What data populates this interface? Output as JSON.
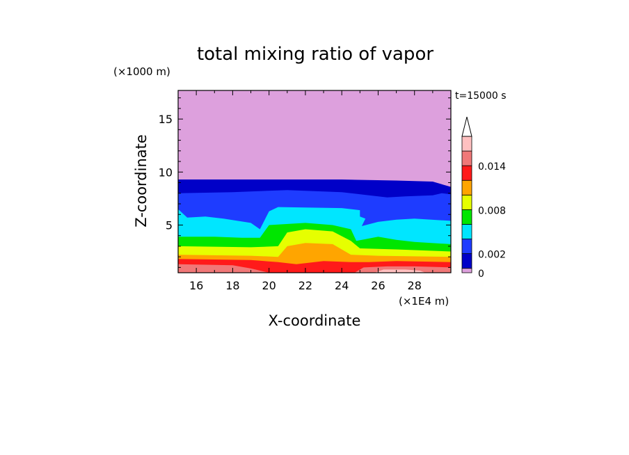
{
  "chart_data": {
    "type": "heatmap",
    "title": "total mixing ratio of vapor",
    "time_label": "t=15000 s",
    "xlabel": "X-coordinate",
    "ylabel": "Z-coordinate",
    "x_unit": "(×1E4 m)",
    "y_unit": "(×1000 m)",
    "xlim": [
      15,
      30
    ],
    "ylim": [
      0.5,
      17.7
    ],
    "x_ticks": [
      16,
      18,
      20,
      22,
      24,
      26,
      28
    ],
    "y_ticks": [
      5,
      10,
      15
    ],
    "colorbar": {
      "levels": [
        0,
        0.001,
        0.002,
        0.004,
        0.006,
        0.008,
        0.01,
        0.012,
        0.014,
        0.016
      ],
      "tick_labels": [
        "0",
        "0.002",
        "0.008",
        "0.014"
      ],
      "tick_values": [
        0,
        0.002,
        0.008,
        0.014
      ],
      "colors": [
        "#dda0dd",
        "#0000c8",
        "#1e3cff",
        "#00e6ff",
        "#00e600",
        "#e6ff00",
        "#ffa500",
        "#ff1a1a",
        "#f07878",
        "#ffc0c0"
      ],
      "extend": "max"
    },
    "contour_bands": [
      {
        "level": "0-0.001",
        "color": "#dda0dd",
        "points": [
          [
            15,
            17.7
          ],
          [
            30,
            17.7
          ],
          [
            30,
            0.5
          ],
          [
            15,
            0.5
          ]
        ]
      },
      {
        "level": "0.001-0.002",
        "color": "#0000c8",
        "points": [
          [
            15,
            9.3
          ],
          [
            19,
            9.3
          ],
          [
            24,
            9.3
          ],
          [
            27,
            9.2
          ],
          [
            29,
            9.1
          ],
          [
            29.6,
            8.8
          ],
          [
            30,
            8.6
          ],
          [
            30,
            0.5
          ],
          [
            15,
            0.5
          ]
        ]
      },
      {
        "level": "0.002-0.004",
        "color": "#1e3cff",
        "points": [
          [
            15,
            8.0
          ],
          [
            18,
            8.1
          ],
          [
            21,
            8.3
          ],
          [
            24,
            8.1
          ],
          [
            25.5,
            7.8
          ],
          [
            26.5,
            7.6
          ],
          [
            27.5,
            7.7
          ],
          [
            29,
            7.8
          ],
          [
            29.5,
            8.0
          ],
          [
            30,
            7.9
          ],
          [
            30,
            0.5
          ],
          [
            15,
            0.5
          ]
        ]
      },
      {
        "level": "0.004-0.006",
        "color": "#00e6ff",
        "points": [
          [
            15,
            6.5
          ],
          [
            15.5,
            5.7
          ],
          [
            16.5,
            5.8
          ],
          [
            17.5,
            5.6
          ],
          [
            19,
            5.2
          ],
          [
            19.5,
            4.6
          ],
          [
            20,
            6.3
          ],
          [
            20.5,
            6.7
          ],
          [
            24,
            6.6
          ],
          [
            25,
            6.4
          ],
          [
            25,
            5.8
          ],
          [
            25.3,
            5.6
          ],
          [
            25.1,
            4.9
          ],
          [
            26,
            5.3
          ],
          [
            27,
            5.5
          ],
          [
            28,
            5.6
          ],
          [
            30,
            5.4
          ],
          [
            30,
            0.5
          ],
          [
            15,
            0.5
          ]
        ]
      },
      {
        "level": "0.006-0.008",
        "color": "#00e600",
        "points": [
          [
            15,
            3.9
          ],
          [
            17,
            3.9
          ],
          [
            18.5,
            3.8
          ],
          [
            19.5,
            3.8
          ],
          [
            20,
            5.0
          ],
          [
            22,
            5.2
          ],
          [
            23.5,
            5.0
          ],
          [
            24.5,
            4.6
          ],
          [
            24.8,
            3.5
          ],
          [
            26,
            3.9
          ],
          [
            27,
            3.6
          ],
          [
            28,
            3.4
          ],
          [
            30,
            3.2
          ],
          [
            30,
            0.5
          ],
          [
            15,
            0.5
          ]
        ]
      },
      {
        "level": "0.008-0.010",
        "color": "#e6ff00",
        "points": [
          [
            15,
            3.0
          ],
          [
            19,
            2.9
          ],
          [
            20.5,
            3.0
          ],
          [
            21,
            4.3
          ],
          [
            22,
            4.6
          ],
          [
            23.5,
            4.4
          ],
          [
            24.5,
            3.5
          ],
          [
            25,
            2.8
          ],
          [
            27,
            2.7
          ],
          [
            30,
            2.5
          ],
          [
            30,
            0.5
          ],
          [
            15,
            0.5
          ]
        ]
      },
      {
        "level": "0.010-0.012",
        "color": "#ffa500",
        "points": [
          [
            15,
            2.2
          ],
          [
            19,
            2.1
          ],
          [
            20.5,
            2.0
          ],
          [
            21,
            3.0
          ],
          [
            22,
            3.3
          ],
          [
            23.5,
            3.2
          ],
          [
            24.5,
            2.2
          ],
          [
            26,
            2.1
          ],
          [
            30,
            2.0
          ],
          [
            30,
            0.5
          ],
          [
            15,
            0.5
          ]
        ]
      },
      {
        "level": "0.012-0.014",
        "color": "#ff1a1a",
        "points": [
          [
            15,
            1.8
          ],
          [
            19,
            1.7
          ],
          [
            20.5,
            1.5
          ],
          [
            21.5,
            1.3
          ],
          [
            23,
            1.6
          ],
          [
            24.5,
            1.5
          ],
          [
            25.5,
            1.5
          ],
          [
            27,
            1.6
          ],
          [
            30,
            1.5
          ],
          [
            30,
            0.5
          ],
          [
            15,
            0.5
          ]
        ]
      },
      {
        "level": "0.014-0.016",
        "color": "#f07878",
        "points": [
          [
            15,
            1.3
          ],
          [
            18,
            1.2
          ],
          [
            19,
            0.9
          ],
          [
            20,
            0.5
          ],
          [
            15,
            0.5
          ]
        ]
      },
      {
        "level": "0.014-0.016",
        "color": "#f07878",
        "points": [
          [
            24.7,
            0.5
          ],
          [
            25.2,
            1.0
          ],
          [
            26.5,
            1.1
          ],
          [
            28,
            1.1
          ],
          [
            30,
            1.0
          ],
          [
            30,
            0.5
          ]
        ]
      },
      {
        "level": "0.016+",
        "color": "#ffc0c0",
        "points": [
          [
            25.8,
            0.5
          ],
          [
            26.3,
            0.8
          ],
          [
            27.5,
            0.8
          ],
          [
            28.3,
            0.7
          ],
          [
            28.6,
            0.5
          ]
        ]
      }
    ]
  }
}
